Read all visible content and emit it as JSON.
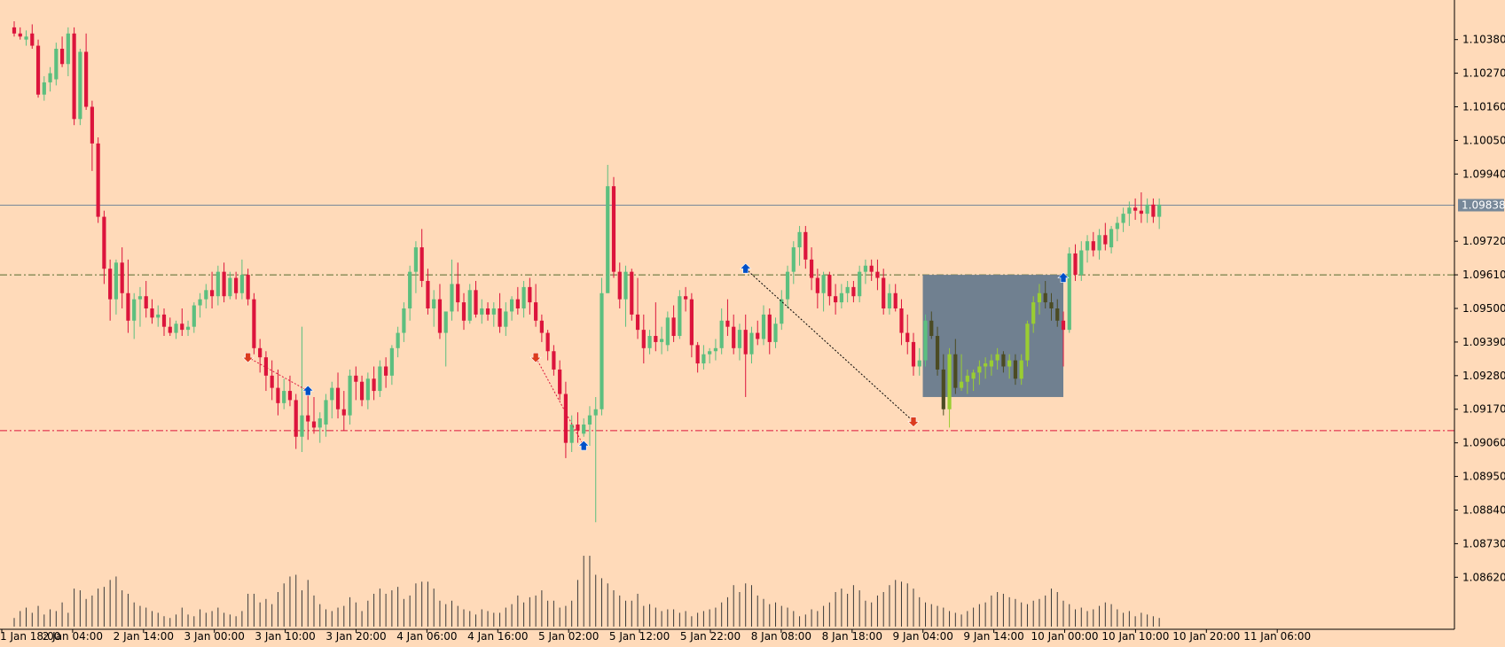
{
  "colors": {
    "background": "#ffdab9",
    "bull": "#5cbf7f",
    "bear": "#dc143c",
    "zoneBull": "#9acd32",
    "zoneBear": "#4b4b23",
    "zoneFill": "#708090",
    "volume": "#3a3a3a",
    "axis": "#000000",
    "priceLine": "#778899",
    "priceLabelBg": "#778899",
    "resistance": "#556b2f",
    "support": "#dc143c",
    "upArrow": "#0050c8",
    "downArrow": "#dc3c1e"
  },
  "chart_data": {
    "type": "candlestick",
    "symbol_timeframe": "",
    "ylim": [
      1.0856,
      1.1044
    ],
    "y_ticks": [
      "1.10380",
      "1.10270",
      "1.10160",
      "1.10050",
      "1.09940",
      "1.09720",
      "1.09610",
      "1.09500",
      "1.09390",
      "1.09280",
      "1.09170",
      "1.09060",
      "1.08950",
      "1.08840",
      "1.08730",
      "1.08620"
    ],
    "current_price": "1.09838",
    "x_labels": [
      "1 Jan 18:00",
      "2 Jan 04:00",
      "2 Jan 14:00",
      "3 Jan 00:00",
      "3 Jan 10:00",
      "3 Jan 20:00",
      "4 Jan 06:00",
      "4 Jan 16:00",
      "5 Jan 02:00",
      "5 Jan 12:00",
      "5 Jan 22:00",
      "8 Jan 08:00",
      "8 Jan 18:00",
      "9 Jan 04:00",
      "9 Jan 14:00",
      "10 Jan 00:00",
      "10 Jan 10:00",
      "10 Jan 20:00",
      "11 Jan 06:00"
    ],
    "resistance_level": 1.0961,
    "support_level": 1.091,
    "zone": {
      "start_bar": 152,
      "end_bar": 175,
      "top": 1.0961,
      "bottom": 1.0921
    },
    "arrows": [
      {
        "bar": 39,
        "dir": "down",
        "price": 1.0934
      },
      {
        "bar": 49,
        "dir": "up",
        "price": 1.0923
      },
      {
        "bar": 87,
        "dir": "down",
        "price": 1.0934
      },
      {
        "bar": 95,
        "dir": "up",
        "price": 1.0905
      },
      {
        "bar": 122,
        "dir": "up",
        "price": 1.0963
      },
      {
        "bar": 150,
        "dir": "down",
        "price": 1.0913
      },
      {
        "bar": 175,
        "dir": "up",
        "price": 1.096
      }
    ],
    "trend_lines": [
      {
        "from_bar": 39,
        "from_price": 1.0934,
        "to_bar": 49,
        "to_price": 1.0923,
        "color": "bear"
      },
      {
        "from_bar": 87,
        "from_price": 1.0934,
        "to_bar": 95,
        "to_price": 1.0905,
        "color": "bear"
      },
      {
        "from_bar": 122,
        "from_price": 1.0963,
        "to_bar": 150,
        "to_price": 1.0913,
        "color": "axis"
      }
    ],
    "ohlc": [
      [
        1.1042,
        1.1044,
        1.1039,
        1.104
      ],
      [
        1.104,
        1.1042,
        1.1038,
        1.1039
      ],
      [
        1.1038,
        1.1041,
        1.1036,
        1.1039
      ],
      [
        1.104,
        1.1043,
        1.1035,
        1.1036
      ],
      [
        1.1036,
        1.1038,
        1.1019,
        1.102
      ],
      [
        1.102,
        1.1026,
        1.1018,
        1.1024
      ],
      [
        1.1024,
        1.1029,
        1.1021,
        1.1027
      ],
      [
        1.1025,
        1.1037,
        1.1023,
        1.1035
      ],
      [
        1.1035,
        1.1039,
        1.1029,
        1.103
      ],
      [
        1.103,
        1.1042,
        1.1026,
        1.104
      ],
      [
        1.104,
        1.1042,
        1.101,
        1.1012
      ],
      [
        1.1012,
        1.1035,
        1.101,
        1.1034
      ],
      [
        1.1034,
        1.104,
        1.1015,
        1.1016
      ],
      [
        1.1016,
        1.1018,
        1.0995,
        1.1004
      ],
      [
        1.1004,
        1.1006,
        1.0978,
        1.098
      ],
      [
        1.098,
        1.0982,
        1.0958,
        1.0963
      ],
      [
        1.0963,
        1.0966,
        1.0946,
        1.0953
      ],
      [
        1.0953,
        1.0966,
        1.0948,
        1.0965
      ],
      [
        1.0965,
        1.097,
        1.095,
        1.0955
      ],
      [
        1.0955,
        1.0966,
        1.0942,
        1.0946
      ],
      [
        1.0946,
        1.0955,
        1.094,
        1.0953
      ],
      [
        1.0953,
        1.0957,
        1.0944,
        1.0954
      ],
      [
        1.0954,
        1.0959,
        1.0947,
        1.095
      ],
      [
        1.095,
        1.0953,
        1.0945,
        1.0947
      ],
      [
        1.0947,
        1.0951,
        1.0944,
        1.0948
      ],
      [
        1.0948,
        1.095,
        1.0941,
        1.0944
      ],
      [
        1.0944,
        1.0947,
        1.0941,
        1.0942
      ],
      [
        1.0942,
        1.0946,
        1.094,
        1.0945
      ],
      [
        1.0945,
        1.095,
        1.0941,
        1.0943
      ],
      [
        1.0943,
        1.0946,
        1.0941,
        1.0944
      ],
      [
        1.0944,
        1.0952,
        1.0942,
        1.0951
      ],
      [
        1.0951,
        1.0955,
        1.0947,
        1.0953
      ],
      [
        1.0953,
        1.0958,
        1.095,
        1.0956
      ],
      [
        1.0956,
        1.0962,
        1.095,
        1.0954
      ],
      [
        1.0954,
        1.0964,
        1.0951,
        1.0962
      ],
      [
        1.0962,
        1.0965,
        1.0952,
        1.0954
      ],
      [
        1.0954,
        1.0962,
        1.0953,
        1.096
      ],
      [
        1.096,
        1.0962,
        1.0953,
        1.0955
      ],
      [
        1.0955,
        1.0966,
        1.0953,
        1.0961
      ],
      [
        1.0961,
        1.0963,
        1.0951,
        1.0953
      ],
      [
        1.0953,
        1.0955,
        1.0935,
        1.0937
      ],
      [
        1.0937,
        1.094,
        1.0929,
        1.0934
      ],
      [
        1.0934,
        1.0936,
        1.0923,
        1.0928
      ],
      [
        1.0928,
        1.0933,
        1.092,
        1.0924
      ],
      [
        1.0924,
        1.093,
        1.0915,
        1.0919
      ],
      [
        1.0919,
        1.0927,
        1.0917,
        1.0923
      ],
      [
        1.0923,
        1.0928,
        1.0918,
        1.092
      ],
      [
        1.092,
        1.0922,
        1.0904,
        1.0908
      ],
      [
        1.0908,
        1.0944,
        1.0903,
        1.0915
      ],
      [
        1.0915,
        1.0922,
        1.0907,
        1.0913
      ],
      [
        1.0913,
        1.0921,
        1.0909,
        1.0911
      ],
      [
        1.0911,
        1.0916,
        1.0906,
        1.0914
      ],
      [
        1.0912,
        1.0922,
        1.0908,
        1.092
      ],
      [
        1.092,
        1.0926,
        1.0914,
        1.0924
      ],
      [
        1.0924,
        1.0929,
        1.0914,
        1.0917
      ],
      [
        1.0917,
        1.0923,
        1.091,
        1.0915
      ],
      [
        1.0915,
        1.093,
        1.0912,
        1.0928
      ],
      [
        1.0928,
        1.0931,
        1.092,
        1.0926
      ],
      [
        1.0926,
        1.0928,
        1.0918,
        1.092
      ],
      [
        1.092,
        1.0929,
        1.0917,
        1.0927
      ],
      [
        1.0927,
        1.0931,
        1.092,
        1.0923
      ],
      [
        1.0923,
        1.0933,
        1.0921,
        1.0931
      ],
      [
        1.0931,
        1.0934,
        1.0924,
        1.0928
      ],
      [
        1.0928,
        1.0938,
        1.0925,
        1.0937
      ],
      [
        1.0937,
        1.0944,
        1.0934,
        1.0942
      ],
      [
        1.0942,
        1.0952,
        1.0939,
        1.095
      ],
      [
        1.095,
        1.0964,
        1.0946,
        1.0962
      ],
      [
        1.0962,
        1.0972,
        1.0955,
        1.097
      ],
      [
        1.097,
        1.0976,
        1.0957,
        1.0959
      ],
      [
        1.0959,
        1.0963,
        1.0948,
        1.095
      ],
      [
        1.095,
        1.0956,
        1.0944,
        1.0953
      ],
      [
        1.0953,
        1.0958,
        1.094,
        1.0942
      ],
      [
        1.0942,
        1.0948,
        1.0931,
        1.0949
      ],
      [
        1.0949,
        1.0966,
        1.0946,
        1.0958
      ],
      [
        1.0958,
        1.0965,
        1.0949,
        1.0952
      ],
      [
        1.0952,
        1.0955,
        1.0943,
        1.0946
      ],
      [
        1.0946,
        1.0958,
        1.0945,
        1.0956
      ],
      [
        1.0956,
        1.0959,
        1.0947,
        1.0948
      ],
      [
        1.0948,
        1.0953,
        1.0945,
        1.095
      ],
      [
        1.095,
        1.0952,
        1.0946,
        1.0948
      ],
      [
        1.0948,
        1.0952,
        1.0944,
        1.095
      ],
      [
        1.095,
        1.0955,
        1.0942,
        1.0944
      ],
      [
        1.0944,
        1.0952,
        1.0941,
        1.0949
      ],
      [
        1.0949,
        1.0954,
        1.0946,
        1.0953
      ],
      [
        1.0953,
        1.0957,
        1.0948,
        1.095
      ],
      [
        1.095,
        1.0959,
        1.0947,
        1.0957
      ],
      [
        1.0957,
        1.096,
        1.0948,
        1.0952
      ],
      [
        1.0952,
        1.0958,
        1.0944,
        1.0946
      ],
      [
        1.0946,
        1.0948,
        1.0939,
        1.0942
      ],
      [
        1.0942,
        1.0943,
        1.0933,
        1.0936
      ],
      [
        1.0936,
        1.0938,
        1.0928,
        1.093
      ],
      [
        1.093,
        1.0933,
        1.092,
        1.0922
      ],
      [
        1.0922,
        1.0926,
        1.0901,
        1.0906
      ],
      [
        1.0906,
        1.0915,
        1.0903,
        1.0912
      ],
      [
        1.0912,
        1.0916,
        1.0906,
        1.091
      ],
      [
        1.0909,
        1.0914,
        1.0908,
        1.0912
      ],
      [
        1.0912,
        1.0918,
        1.0905,
        1.0915
      ],
      [
        1.0915,
        1.0921,
        1.088,
        1.0917
      ],
      [
        1.0917,
        1.096,
        1.0915,
        1.0955
      ],
      [
        1.0955,
        1.0997,
        1.0955,
        1.099
      ],
      [
        1.099,
        1.0993,
        1.096,
        1.0962
      ],
      [
        1.0962,
        1.0965,
        1.095,
        1.0953
      ],
      [
        1.0953,
        1.0964,
        1.0944,
        1.0962
      ],
      [
        1.0962,
        1.0963,
        1.0946,
        1.0948
      ],
      [
        1.0948,
        1.096,
        1.094,
        1.0943
      ],
      [
        1.0943,
        1.0948,
        1.0932,
        1.0937
      ],
      [
        1.0937,
        1.0943,
        1.0935,
        1.0941
      ],
      [
        1.0941,
        1.0952,
        1.0936,
        1.0939
      ],
      [
        1.0939,
        1.0944,
        1.0935,
        1.094
      ],
      [
        1.0938,
        1.0949,
        1.0936,
        1.0947
      ],
      [
        1.0947,
        1.0951,
        1.0939,
        1.0941
      ],
      [
        1.0941,
        1.0956,
        1.094,
        1.0954
      ],
      [
        1.0954,
        1.0957,
        1.0949,
        1.0953
      ],
      [
        1.0953,
        1.0955,
        1.0934,
        1.0938
      ],
      [
        1.0938,
        1.0939,
        1.0929,
        1.0932
      ],
      [
        1.0932,
        1.0938,
        1.093,
        1.0935
      ],
      [
        1.0935,
        1.0937,
        1.0932,
        1.0936
      ],
      [
        1.0936,
        1.094,
        1.0933,
        1.0937
      ],
      [
        1.0937,
        1.095,
        1.0935,
        1.0946
      ],
      [
        1.0946,
        1.0953,
        1.0941,
        1.0944
      ],
      [
        1.0944,
        1.0948,
        1.0935,
        1.0937
      ],
      [
        1.0937,
        1.0945,
        1.0933,
        1.0943
      ],
      [
        1.0943,
        1.0948,
        1.0921,
        1.0935
      ],
      [
        1.0935,
        1.0944,
        1.0932,
        1.0942
      ],
      [
        1.0942,
        1.0946,
        1.0938,
        1.094
      ],
      [
        1.094,
        1.0951,
        1.0938,
        1.0948
      ],
      [
        1.0948,
        1.095,
        1.0935,
        1.0939
      ],
      [
        1.0939,
        1.0947,
        1.0937,
        1.0945
      ],
      [
        1.0945,
        1.0956,
        1.0943,
        1.0953
      ],
      [
        1.0953,
        1.0964,
        1.095,
        1.0962
      ],
      [
        1.0962,
        1.0972,
        1.0958,
        1.097
      ],
      [
        1.097,
        1.0977,
        1.0964,
        1.0975
      ],
      [
        1.0975,
        1.0977,
        1.0963,
        1.0966
      ],
      [
        1.0966,
        1.097,
        1.0956,
        1.096
      ],
      [
        1.096,
        1.0963,
        1.095,
        1.0955
      ],
      [
        1.0955,
        1.0962,
        1.0949,
        1.0961
      ],
      [
        1.0961,
        1.0962,
        1.0951,
        1.0954
      ],
      [
        1.0954,
        1.0958,
        1.0948,
        1.0952
      ],
      [
        1.0952,
        1.0958,
        1.095,
        1.0955
      ],
      [
        1.0955,
        1.0959,
        1.0952,
        1.0957
      ],
      [
        1.0957,
        1.0959,
        1.0952,
        1.0954
      ],
      [
        1.0954,
        1.0964,
        1.0952,
        1.0962
      ],
      [
        1.0962,
        1.0966,
        1.0958,
        1.0964
      ],
      [
        1.0964,
        1.0966,
        1.0959,
        1.0962
      ],
      [
        1.0962,
        1.0966,
        1.0956,
        1.096
      ],
      [
        1.096,
        1.0963,
        1.0948,
        1.095
      ],
      [
        1.095,
        1.0958,
        1.0948,
        1.0955
      ],
      [
        1.0955,
        1.0958,
        1.0949,
        1.095
      ],
      [
        1.095,
        1.0953,
        1.0938,
        1.0942
      ],
      [
        1.0942,
        1.0948,
        1.0935,
        1.0939
      ],
      [
        1.0939,
        1.0942,
        1.0928,
        1.0931
      ],
      [
        1.0931,
        1.0937,
        1.0928,
        1.0933
      ],
      [
        1.0933,
        1.0948,
        1.0931,
        1.0946
      ],
      [
        1.0946,
        1.0949,
        1.094,
        1.0941
      ],
      [
        1.0941,
        1.0944,
        1.0928,
        1.093
      ],
      [
        1.093,
        1.0935,
        1.0915,
        1.0917
      ],
      [
        1.0917,
        1.0937,
        1.0911,
        1.0935
      ],
      [
        1.0935,
        1.094,
        1.0922,
        1.0924
      ],
      [
        1.0924,
        1.0935,
        1.0923,
        1.0926
      ],
      [
        1.0926,
        1.093,
        1.0922,
        1.0928
      ],
      [
        1.0927,
        1.093,
        1.0923,
        1.0929
      ],
      [
        1.0929,
        1.0933,
        1.0925,
        1.0931
      ],
      [
        1.0931,
        1.0934,
        1.0927,
        1.0932
      ],
      [
        1.0931,
        1.0935,
        1.0928,
        1.0933
      ],
      [
        1.0933,
        1.0937,
        1.093,
        1.0935
      ],
      [
        1.0935,
        1.0936,
        1.0929,
        1.0931
      ],
      [
        1.0931,
        1.0935,
        1.0927,
        1.0933
      ],
      [
        1.0933,
        1.0935,
        1.0925,
        1.0927
      ],
      [
        1.0927,
        1.0935,
        1.0925,
        1.0933
      ],
      [
        1.0933,
        1.0946,
        1.0931,
        1.0945
      ],
      [
        1.0945,
        1.0954,
        1.0942,
        1.0952
      ],
      [
        1.0952,
        1.0958,
        1.0948,
        1.0955
      ],
      [
        1.0955,
        1.0959,
        1.095,
        1.0952
      ],
      [
        1.0952,
        1.0955,
        1.0946,
        1.095
      ],
      [
        1.095,
        1.0953,
        1.0944,
        1.0946
      ],
      [
        1.0946,
        1.0949,
        1.0931,
        1.0943
      ],
      [
        1.0943,
        1.097,
        1.0942,
        1.0968
      ],
      [
        1.0968,
        1.0971,
        1.0959,
        1.0961
      ],
      [
        1.0961,
        1.0972,
        1.0959,
        1.0969
      ],
      [
        1.0969,
        1.0974,
        1.0965,
        1.0972
      ],
      [
        1.0972,
        1.0975,
        1.0967,
        1.0969
      ],
      [
        1.0969,
        1.0976,
        1.0966,
        1.0974
      ],
      [
        1.0974,
        1.0978,
        1.0969,
        1.0971
      ],
      [
        1.097,
        1.0977,
        1.0968,
        1.0976
      ],
      [
        1.0976,
        1.098,
        1.0972,
        1.0978
      ],
      [
        1.0978,
        1.0983,
        1.0975,
        1.0981
      ],
      [
        1.0981,
        1.0985,
        1.0977,
        1.0983
      ],
      [
        1.0983,
        1.0986,
        1.0979,
        1.0982
      ],
      [
        1.0982,
        1.0988,
        1.0978,
        1.0981
      ],
      [
        1.0981,
        1.0986,
        1.0978,
        1.0984
      ],
      [
        1.0984,
        1.0986,
        1.0978,
        1.098
      ],
      [
        1.098,
        1.0986,
        1.0976,
        1.0984
      ]
    ],
    "volume": [
      5,
      9,
      11,
      8,
      12,
      7,
      10,
      9,
      14,
      8,
      22,
      21,
      16,
      18,
      22,
      23,
      27,
      29,
      21,
      19,
      14,
      12,
      11,
      9,
      8,
      6,
      5,
      7,
      11,
      7,
      6,
      10,
      8,
      9,
      11,
      8,
      7,
      6,
      9,
      19,
      19,
      14,
      16,
      13,
      20,
      25,
      29,
      30,
      21,
      27,
      18,
      13,
      10,
      9,
      11,
      12,
      17,
      14,
      9,
      15,
      19,
      22,
      19,
      21,
      23,
      16,
      18,
      25,
      26,
      26,
      22,
      15,
      13,
      15,
      12,
      10,
      9,
      7,
      10,
      9,
      8,
      8,
      11,
      13,
      18,
      14,
      17,
      18,
      21,
      15,
      15,
      11,
      12,
      15,
      27,
      41,
      41,
      30,
      28,
      25,
      21,
      18,
      15,
      15,
      19,
      12,
      13,
      11,
      9,
      10,
      10,
      8,
      9,
      6,
      8,
      9,
      10,
      11,
      14,
      17,
      24,
      20,
      25,
      24,
      18,
      16,
      13,
      14,
      12,
      11,
      9,
      6,
      7,
      10,
      9,
      12,
      14,
      20,
      22,
      19,
      24,
      21,
      15,
      14,
      18,
      20,
      24,
      27,
      26,
      25,
      22,
      17,
      14,
      13,
      12,
      11,
      9,
      8,
      7,
      9,
      11,
      13,
      14,
      18,
      20,
      19,
      17,
      16,
      14,
      13,
      15,
      16,
      18,
      22,
      20,
      15,
      13,
      10,
      11,
      9,
      10,
      12,
      14,
      13,
      10,
      8,
      9,
      6,
      8,
      7,
      6,
      5
    ]
  }
}
